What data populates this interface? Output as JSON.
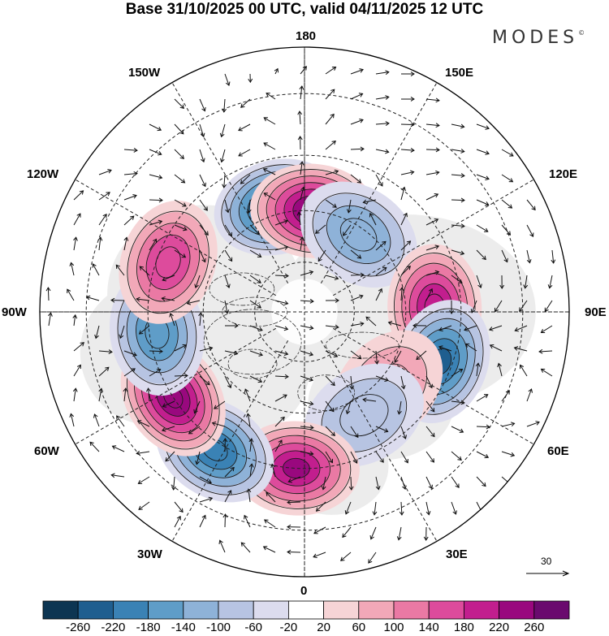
{
  "title": "Base 31/10/2025 00 UTC, valid 04/11/2025 12 UTC",
  "brand": {
    "name": "MODES",
    "mark": "©"
  },
  "longitude_labels": {
    "n": "180",
    "s": "0",
    "w": "90W",
    "e": "90E",
    "nw1": "150W",
    "nw2": "120W",
    "ne1": "150E",
    "ne2": "120E",
    "sw1": "60W",
    "sw2": "30W",
    "se1": "60E",
    "se2": "30E"
  },
  "reference_vector": {
    "value": "30"
  },
  "colorbar": {
    "colors": [
      "#0d3552",
      "#1f5e8f",
      "#3a82b5",
      "#5f9dc8",
      "#8eb2d8",
      "#b7c4e2",
      "#dcdcee",
      "#ffffff",
      "#f6d4d6",
      "#f2a8b8",
      "#ea79a4",
      "#dd4b9c",
      "#c21e8e",
      "#99087e",
      "#6a0a6e"
    ],
    "labels": [
      "-260",
      "-220",
      "-180",
      "-140",
      "-100",
      "-60",
      "-20",
      "20",
      "60",
      "100",
      "140",
      "180",
      "220",
      "260"
    ]
  },
  "chart_data": {
    "type": "heatmap",
    "projection": "polar stereographic, North Pole",
    "title": "Base 31/10/2025 00 UTC, valid 04/11/2025 12 UTC",
    "units_note": "anomaly contours with wind vectors (reference vector 30)",
    "levels": [
      -260,
      -220,
      -180,
      -140,
      -100,
      -60,
      -20,
      20,
      60,
      100,
      140,
      180,
      220,
      260
    ],
    "anomaly_centers": [
      {
        "lon": -165,
        "lat": 58,
        "value": -260
      },
      {
        "lon": 175,
        "lat": 60,
        "value": 240
      },
      {
        "lon": 145,
        "lat": 62,
        "value": -110
      },
      {
        "lon": 92,
        "lat": 52,
        "value": 200
      },
      {
        "lon": 70,
        "lat": 48,
        "value": -220
      },
      {
        "lon": 48,
        "lat": 57,
        "value": 80
      },
      {
        "lon": 30,
        "lat": 55,
        "value": -70
      },
      {
        "lon": -3,
        "lat": 45,
        "value": 220
      },
      {
        "lon": -33,
        "lat": 43,
        "value": -200
      },
      {
        "lon": -57,
        "lat": 45,
        "value": 230
      },
      {
        "lon": -82,
        "lat": 47,
        "value": -170
      },
      {
        "lon": -110,
        "lat": 48,
        "value": 170
      }
    ]
  }
}
